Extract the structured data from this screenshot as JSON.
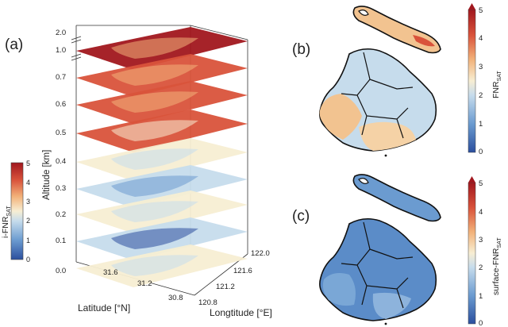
{
  "panel_a": {
    "label": "(a)",
    "z_ticks": [
      "0.0",
      "0.1",
      "0.2",
      "0.3",
      "0.4",
      "0.5",
      "0.6",
      "0.7",
      "1.0",
      "2.0"
    ],
    "z_axis_label": "Altitude [km]",
    "lat_ticks": [
      "31.6",
      "31.2",
      "30.8"
    ],
    "lat_axis_label": "Latitude [°N]",
    "lon_ticks": [
      "120.8",
      "121.2",
      "121.6",
      "122.0"
    ],
    "lon_axis_label": "Longtitude [°E]",
    "layer_levels": [
      0.5,
      0.3,
      0.55,
      0.4,
      0.58,
      0.78,
      0.88,
      0.9,
      0.96
    ],
    "colorbar": {
      "label": "i-FNR",
      "label_sub": "SAT",
      "ticks": [
        "0",
        "1",
        "2",
        "3",
        "4",
        "5"
      ]
    }
  },
  "panel_b": {
    "label": "(b)",
    "colorbar_label": "FNR",
    "colorbar_sub": "SAT",
    "ticks": [
      "0",
      "1",
      "2",
      "3",
      "4",
      "5"
    ]
  },
  "panel_c": {
    "label": "(c)",
    "colorbar_label": "surface-FNR",
    "colorbar_sub": "SAT",
    "ticks": [
      "0",
      "1",
      "2",
      "3",
      "4",
      "5"
    ]
  },
  "colorscale": [
    "#2b4f9e",
    "#6b9bd0",
    "#c6dcec",
    "#f7eed3",
    "#f2b27a",
    "#d9533b",
    "#a1171e"
  ]
}
